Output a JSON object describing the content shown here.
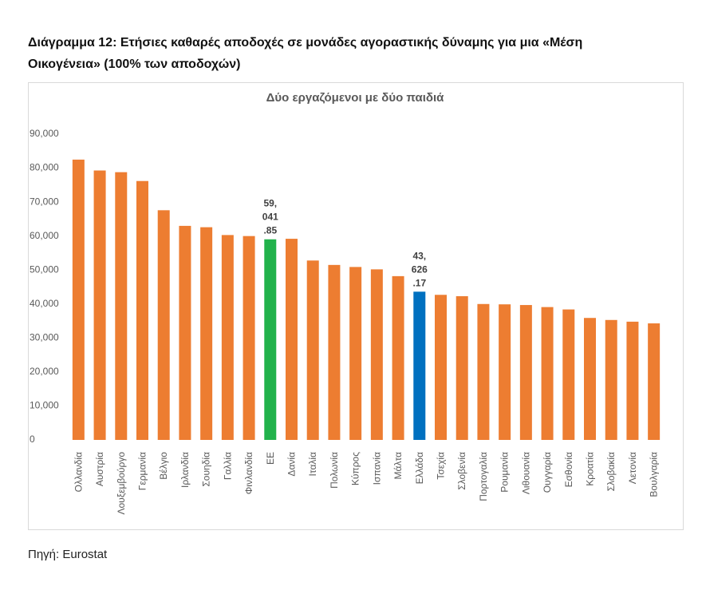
{
  "header": {
    "title": "Διάγραμμα 12: Ετήσιες καθαρές αποδοχές σε μονάδες αγοραστικής δύναμης για μια «Μέση Οικογένεια» (100% των αποδοχών)"
  },
  "chart_data": {
    "type": "bar",
    "title": "Δύο εργαζόμενοι με δύο παιδιά",
    "categories": [
      "Ολλανδία",
      "Αυστρία",
      "Λουξεμβούργο",
      "Γερμανία",
      "Βέλγιο",
      "Ιρλανδία",
      "Σουηδία",
      "Γαλλία",
      "Φινλανδία",
      "ΕΕ",
      "Δανία",
      "Ιταλία",
      "Πολωνία",
      "Κύπρος",
      "Ισπανία",
      "Μάλτα",
      "Ελλάδα",
      "Τσεχία",
      "Σλοβενία",
      "Πορτογαλία",
      "Ρουμανία",
      "Λιθουανία",
      "Ουγγαρία",
      "Εσθονία",
      "Κροατία",
      "Σλοβακία",
      "Λετονία",
      "Βουλγαρία"
    ],
    "values": [
      82500,
      79300,
      78800,
      76200,
      67600,
      63000,
      62600,
      60300,
      60000,
      59041.85,
      59200,
      52800,
      51500,
      50900,
      50200,
      48200,
      43626.17,
      42700,
      42300,
      40000,
      39900,
      39700,
      39100,
      38400,
      35900,
      35300,
      34800,
      34300
    ],
    "value_labels": [
      null,
      null,
      null,
      null,
      null,
      null,
      null,
      null,
      null,
      "59,041.85",
      null,
      null,
      null,
      null,
      null,
      null,
      "43,626.17",
      null,
      null,
      null,
      null,
      null,
      null,
      null,
      null,
      null,
      null,
      null
    ],
    "colors": [
      "#ed7d31",
      "#ed7d31",
      "#ed7d31",
      "#ed7d31",
      "#ed7d31",
      "#ed7d31",
      "#ed7d31",
      "#ed7d31",
      "#ed7d31",
      "#21b24b",
      "#ed7d31",
      "#ed7d31",
      "#ed7d31",
      "#ed7d31",
      "#ed7d31",
      "#ed7d31",
      "#0070c0",
      "#ed7d31",
      "#ed7d31",
      "#ed7d31",
      "#ed7d31",
      "#ed7d31",
      "#ed7d31",
      "#ed7d31",
      "#ed7d31",
      "#ed7d31",
      "#ed7d31",
      "#ed7d31"
    ],
    "ylim": [
      0,
      90000
    ],
    "yticks": [
      0,
      {
        "value": 10000,
        "label": "10,000"
      },
      {
        "value": 20000,
        "label": "20,000"
      },
      {
        "value": 30000,
        "label": "30,000"
      },
      {
        "value": 40000,
        "label": "40,000"
      },
      {
        "value": 50000,
        "label": "50,000"
      },
      {
        "value": 60000,
        "label": "60,000"
      },
      {
        "value": 70000,
        "label": "70,000"
      },
      {
        "value": 80000,
        "label": "80,000"
      },
      {
        "value": 90000,
        "label": "90,000"
      }
    ],
    "grid": false
  },
  "source": "Πηγή: Eurostat"
}
